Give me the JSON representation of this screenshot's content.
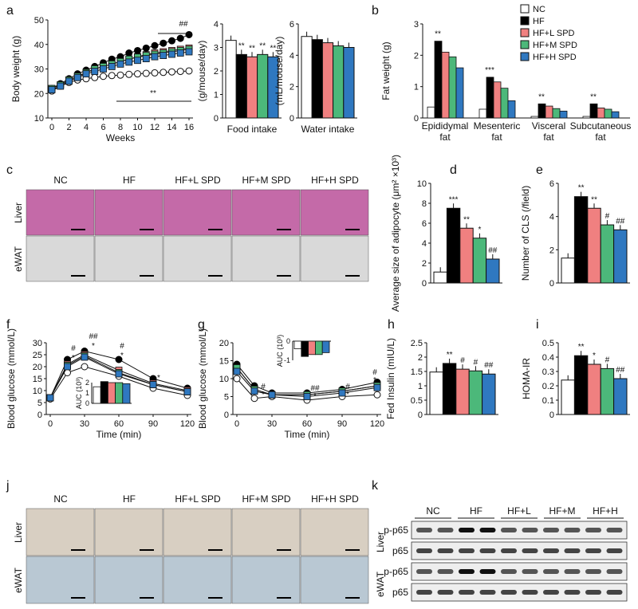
{
  "colors": {
    "NC": "#ffffff",
    "HF": "#000000",
    "HF+L SPD": "#f08080",
    "HF+M SPD": "#4cb87a",
    "HF+H SPD": "#2f78c0"
  },
  "panel_letters": [
    "a",
    "b",
    "c",
    "d",
    "e",
    "f",
    "g",
    "h",
    "i",
    "j",
    "k"
  ],
  "legend": [
    "NC",
    "HF",
    "HF+L SPD",
    "HF+M SPD",
    "HF+H SPD"
  ],
  "chart_data": [
    {
      "id": "a1",
      "type": "line",
      "ylabel": "Body weight (g)",
      "xlabel": "Weeks",
      "ylim": [
        10,
        50
      ],
      "yticks": [
        "10",
        "20",
        "30",
        "40",
        "50"
      ],
      "xticks": [
        "0",
        "2",
        "4",
        "6",
        "8",
        "10",
        "12",
        "14",
        "16"
      ],
      "x": [
        0,
        1,
        2,
        3,
        4,
        5,
        6,
        7,
        8,
        9,
        10,
        11,
        12,
        13,
        14,
        15,
        16
      ],
      "series": [
        {
          "name": "NC",
          "values": [
            21,
            23,
            24.5,
            25.5,
            26,
            26.5,
            27,
            27.3,
            27.5,
            27.8,
            28,
            28.2,
            28.4,
            28.6,
            28.8,
            29,
            29.2
          ]
        },
        {
          "name": "HF",
          "values": [
            22,
            24,
            26,
            28,
            29.5,
            31,
            32.5,
            34,
            35,
            36.5,
            37.5,
            38.5,
            39.5,
            40.5,
            41.5,
            42.5,
            44
          ]
        },
        {
          "name": "HF+L SPD",
          "values": [
            22,
            23.5,
            25.5,
            27,
            28.5,
            30,
            31,
            32,
            33,
            34,
            35,
            35.8,
            36.5,
            37,
            37.5,
            38,
            38.5
          ]
        },
        {
          "name": "HF+M SPD",
          "values": [
            22,
            23.5,
            25.5,
            27,
            28.5,
            30,
            31,
            32,
            33,
            34,
            34.8,
            35.5,
            36,
            36.5,
            37,
            37.5,
            38
          ]
        },
        {
          "name": "HF+H SPD",
          "values": [
            21.5,
            23,
            25,
            26.5,
            28,
            29,
            30,
            31,
            32,
            32.8,
            33.5,
            34.2,
            35,
            35.5,
            36,
            36.5,
            37
          ]
        }
      ],
      "annotations": [
        "##",
        "**"
      ]
    },
    {
      "id": "a2",
      "type": "bar",
      "ylabel": "(g/mouse/day)",
      "xlabel": "Food intake",
      "ylim": [
        0,
        4
      ],
      "yticks": [
        "0",
        "1",
        "2",
        "3",
        "4"
      ],
      "values": [
        3.3,
        2.7,
        2.6,
        2.7,
        2.6
      ],
      "annotations": [
        "",
        "**",
        "**",
        "**",
        "**"
      ]
    },
    {
      "id": "a3",
      "type": "bar",
      "ylabel": "(mL/mouse/day)",
      "xlabel": "Water intake",
      "ylim": [
        0,
        6
      ],
      "yticks": [
        "0",
        "2",
        "4",
        "6"
      ],
      "values": [
        5.2,
        5.0,
        4.8,
        4.6,
        4.5
      ]
    },
    {
      "id": "b",
      "type": "bar",
      "ylabel": "Fat weight (g)",
      "ylim": [
        0,
        3
      ],
      "yticks": [
        "0",
        "1",
        "2",
        "3"
      ],
      "categories": [
        "Epididymal fat",
        "Mesenteric fat",
        "Visceral fat",
        "Subcutaneous fat"
      ],
      "series": [
        {
          "name": "NC",
          "values": [
            0.35,
            0.28,
            0.05,
            0.05
          ]
        },
        {
          "name": "HF",
          "values": [
            2.45,
            1.3,
            0.45,
            0.45
          ]
        },
        {
          "name": "HF+L SPD",
          "values": [
            2.1,
            1.15,
            0.38,
            0.32
          ]
        },
        {
          "name": "HF+M SPD",
          "values": [
            1.95,
            0.95,
            0.3,
            0.28
          ]
        },
        {
          "name": "HF+H SPD",
          "values": [
            1.6,
            0.55,
            0.22,
            0.2
          ]
        }
      ],
      "annotations": [
        "**",
        "***",
        "**",
        "**"
      ]
    },
    {
      "id": "d",
      "type": "bar",
      "ylabel": "Average size of adipocyte (μm² ×10³)",
      "ylim": [
        0,
        10
      ],
      "yticks": [
        "0",
        "2",
        "4",
        "6",
        "8",
        "10"
      ],
      "values": [
        1.1,
        7.5,
        5.5,
        4.5,
        2.4
      ],
      "annotations": [
        "",
        "***",
        "**",
        "*",
        "##"
      ]
    },
    {
      "id": "e",
      "type": "bar",
      "ylabel": "Number of CLS (/field)",
      "ylim": [
        0,
        6
      ],
      "yticks": [
        "0",
        "2",
        "4",
        "6"
      ],
      "values": [
        1.5,
        5.2,
        4.5,
        3.5,
        3.2
      ],
      "annotations": [
        "",
        "**",
        "**",
        "#",
        "##"
      ]
    },
    {
      "id": "f",
      "type": "line",
      "ylabel": "Blood glucose (mmol/L)",
      "xlabel": "Time (min)",
      "ylim": [
        0,
        30
      ],
      "yticks": [
        "0",
        "5",
        "10",
        "15",
        "20",
        "25",
        "30"
      ],
      "xticks": [
        "0",
        "30",
        "60",
        "90",
        "120"
      ],
      "x": [
        0,
        15,
        30,
        60,
        90,
        120
      ],
      "series": [
        {
          "name": "NC",
          "values": [
            6.5,
            17.5,
            20,
            16,
            11,
            8
          ]
        },
        {
          "name": "HF",
          "values": [
            7,
            23,
            26.5,
            23,
            15,
            11
          ]
        },
        {
          "name": "HF+L SPD",
          "values": [
            7,
            21,
            25,
            18.5,
            13,
            10
          ]
        },
        {
          "name": "HF+M SPD",
          "values": [
            7,
            20.5,
            24.5,
            17.5,
            12.5,
            9.5
          ]
        },
        {
          "name": "HF+H SPD",
          "values": [
            7,
            20,
            24,
            17,
            12.5,
            9.5
          ]
        }
      ],
      "inset": {
        "ylabel": "AUC (10³)",
        "yticks": [
          "0",
          "1",
          "2"
        ],
        "values": [
          1.6,
          2.1,
          2.0,
          2.0,
          1.9
        ]
      }
    },
    {
      "id": "g",
      "type": "line",
      "ylabel": "Blood glucose (mmol/L)",
      "xlabel": "Time (min)",
      "ylim": [
        0,
        20
      ],
      "yticks": [
        "0",
        "5",
        "10",
        "15",
        "20"
      ],
      "xticks": [
        "0",
        "30",
        "60",
        "90",
        "120"
      ],
      "x": [
        0,
        15,
        30,
        60,
        90,
        120
      ],
      "series": [
        {
          "name": "NC",
          "values": [
            10,
            4.5,
            5,
            4,
            5,
            5.5
          ]
        },
        {
          "name": "HF",
          "values": [
            14,
            8,
            6,
            6,
            7,
            9
          ]
        },
        {
          "name": "HF+L SPD",
          "values": [
            13,
            7,
            5.5,
            5.5,
            6.5,
            8
          ]
        },
        {
          "name": "HF+M SPD",
          "values": [
            13,
            7,
            5.5,
            5.5,
            6.5,
            8
          ]
        },
        {
          "name": "HF+H SPD",
          "values": [
            12,
            6.5,
            5.5,
            5,
            6,
            7.5
          ]
        }
      ],
      "inset": {
        "ylabel": "AUC (10³)",
        "yticks": [
          "0",
          "-1"
        ],
        "values": [
          -0.4,
          -0.8,
          -0.7,
          -0.7,
          -0.6
        ]
      }
    },
    {
      "id": "h",
      "type": "bar",
      "ylabel": "Fed Insulin (mIU/L)",
      "ylim": [
        0,
        2.5
      ],
      "yticks": [
        "0",
        "0.5",
        "1",
        "1.5",
        "2",
        "2.5"
      ],
      "values": [
        1.48,
        1.78,
        1.58,
        1.52,
        1.41
      ],
      "annotations": [
        "",
        "**",
        "#",
        "#",
        "##"
      ]
    },
    {
      "id": "i",
      "type": "bar",
      "ylabel": "HOMA-IR",
      "ylim": [
        0,
        0.5
      ],
      "yticks": [
        "0",
        "0.1",
        "0.2",
        "0.3",
        "0.4",
        "0.5"
      ],
      "values": [
        0.24,
        0.41,
        0.35,
        0.32,
        0.25
      ],
      "annotations": [
        "",
        "**",
        "*",
        "#",
        "##"
      ]
    }
  ],
  "histology_c": {
    "cols": [
      "NC",
      "HF",
      "HF+L SPD",
      "HF+M SPD",
      "HF+H SPD"
    ],
    "rows": [
      "Liver",
      "eWAT"
    ]
  },
  "histology_j": {
    "cols": [
      "NC",
      "HF",
      "HF+L SPD",
      "HF+M SPD",
      "HF+H SPD"
    ],
    "rows": [
      "Liver",
      "eWAT"
    ]
  },
  "western_k": {
    "groups": [
      "NC",
      "HF",
      "HF+L",
      "HF+M",
      "HF+H"
    ],
    "tissues": [
      "Liver",
      "eWAT"
    ],
    "bands": [
      "p-p65",
      "p65",
      "p-p65",
      "p65"
    ]
  }
}
